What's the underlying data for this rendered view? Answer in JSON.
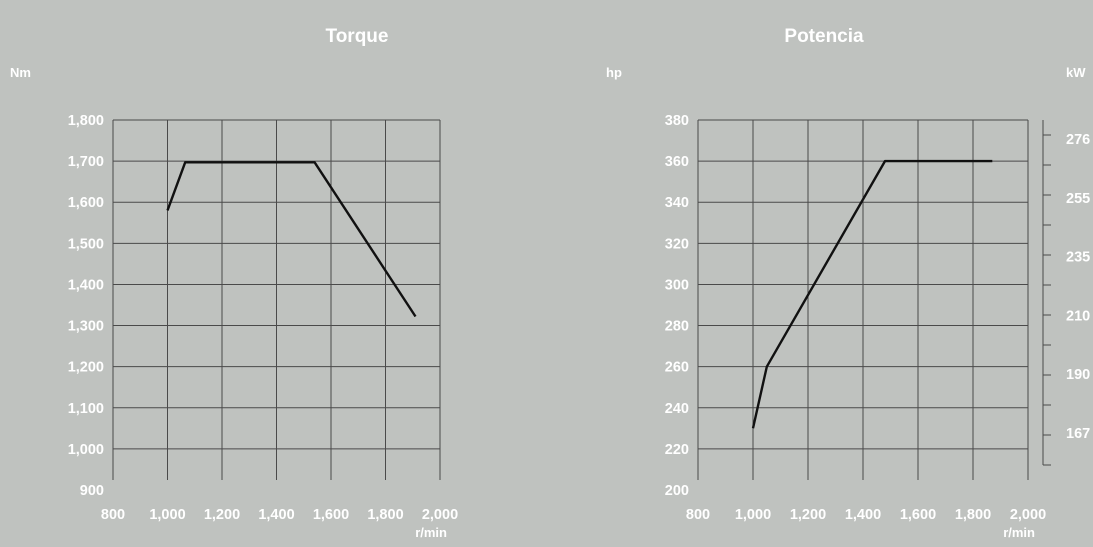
{
  "chart_data": [
    {
      "type": "line",
      "title": "Torque",
      "ylabel": "Nm",
      "xlabel": "r/min",
      "x_ticks": [
        "800",
        "1,000",
        "1,200",
        "1,400",
        "1,600",
        "1,800",
        "2,000"
      ],
      "y_ticks": [
        "900",
        "1,000",
        "1,100",
        "1,200",
        "1,300",
        "1,400",
        "1,500",
        "1,600",
        "1,700",
        "1,800"
      ],
      "xlim": [
        800,
        2000
      ],
      "ylim": [
        900,
        1800
      ],
      "grid": true,
      "series": [
        {
          "x": [
            1000,
            1065,
            1540,
            1910
          ],
          "y": [
            1580,
            1697,
            1697,
            1322
          ]
        }
      ]
    },
    {
      "type": "line",
      "title": "Potencia",
      "ylabel": "hp",
      "ylabel_right": "kW",
      "xlabel": "r/min",
      "x_ticks": [
        "800",
        "1,000",
        "1,200",
        "1,400",
        "1,600",
        "1,800",
        "2,000"
      ],
      "y_ticks": [
        "200",
        "220",
        "240",
        "260",
        "280",
        "300",
        "320",
        "340",
        "360",
        "380"
      ],
      "y2_ticks": [
        "167",
        "190",
        "210",
        "235",
        "255",
        "276"
      ],
      "y2_values": [
        167,
        190,
        210,
        235,
        255,
        276
      ],
      "xlim": [
        800,
        2000
      ],
      "ylim": [
        200,
        380
      ],
      "grid": true,
      "series": [
        {
          "x": [
            1000,
            1050,
            1480,
            1870
          ],
          "y": [
            230,
            260,
            360,
            360
          ]
        }
      ]
    }
  ]
}
